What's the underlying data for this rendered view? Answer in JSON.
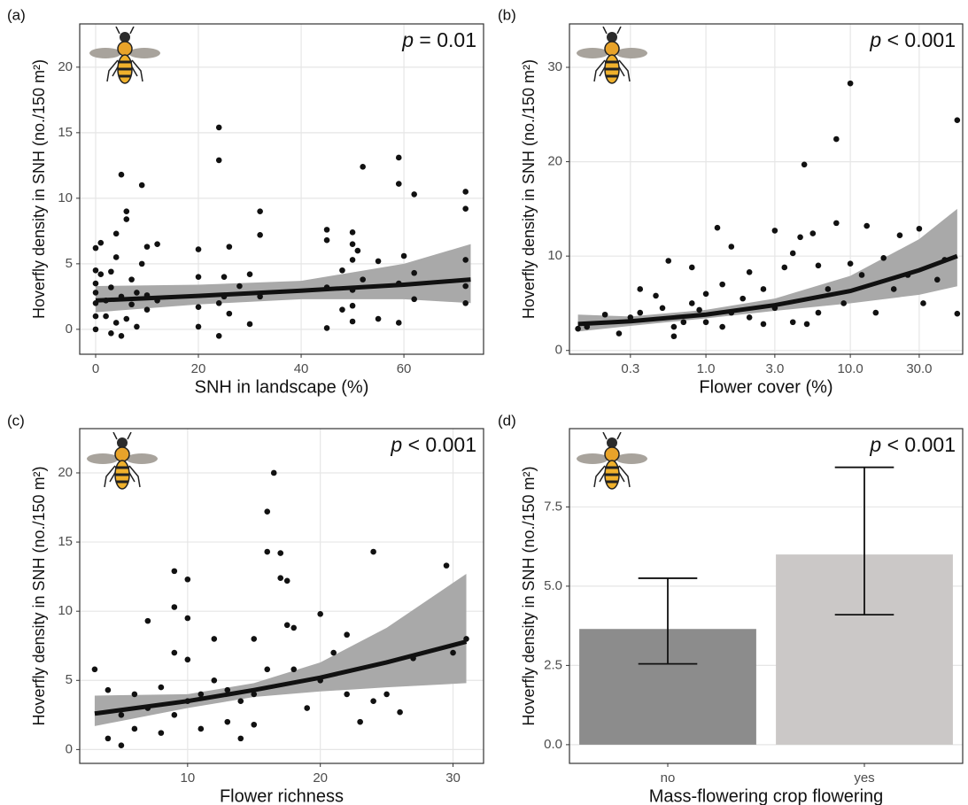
{
  "chart_data": [
    {
      "type": "scatter",
      "panel_label": "(a)",
      "annotation_symbol": "p",
      "annotation": " = 0.01",
      "xlabel": "SNH in landscape (%)",
      "ylabel": "Hoverfly density in SNH (no./150 m²)",
      "xlim": [
        -3.1,
        75.5
      ],
      "xticks": [
        0,
        20,
        40,
        60
      ],
      "ylim": [
        -1.9,
        23.3
      ],
      "yticks": [
        0,
        5,
        10,
        15,
        20
      ],
      "grid": true,
      "log_x": false,
      "color": "#111111",
      "ribbon_color": "#a9a9a9",
      "x": [
        0,
        0,
        0,
        0,
        0,
        0,
        0,
        1,
        1,
        2,
        2,
        3,
        3,
        3,
        4,
        4,
        4,
        5,
        5,
        5,
        6,
        6,
        6,
        7,
        7,
        8,
        8,
        9,
        9,
        10,
        10,
        10,
        12,
        12,
        20,
        20,
        20,
        20,
        24,
        24,
        24,
        24,
        25,
        25,
        26,
        26,
        28,
        30,
        30,
        32,
        32,
        32,
        45,
        45,
        45,
        45,
        48,
        48,
        50,
        50,
        50,
        50,
        50,
        50,
        51,
        52,
        52,
        55,
        55,
        59,
        59,
        59,
        59,
        60,
        62,
        62,
        62,
        72,
        72,
        72,
        72,
        72
      ],
      "values": [
        6.2,
        4.5,
        3.5,
        2.8,
        2,
        1,
        0,
        6.6,
        4.2,
        2.2,
        1,
        4.4,
        3.2,
        -0.3,
        7.3,
        5.5,
        0.5,
        11.8,
        2.5,
        -0.5,
        8.4,
        9,
        0.8,
        3.8,
        1.9,
        2.8,
        0.2,
        11,
        5,
        6.3,
        2.6,
        1.5,
        6.5,
        2.2,
        6.1,
        4,
        1.7,
        0.2,
        15.4,
        12.9,
        2,
        -0.5,
        4,
        2.5,
        6.3,
        1.2,
        3.3,
        4.2,
        0.4,
        9,
        7.2,
        2.5,
        7.6,
        6.8,
        3.2,
        0.1,
        4.5,
        1.5,
        7.4,
        6.5,
        5.3,
        3,
        1.8,
        0.6,
        6,
        12.4,
        3.8,
        5.2,
        0.8,
        13.1,
        11.1,
        3.5,
        0.5,
        5.6,
        10.3,
        4.3,
        2.3,
        10.5,
        9.2,
        5.3,
        3.3,
        2
      ],
      "fit": {
        "x": [
          0,
          20,
          40,
          60,
          73
        ],
        "values": [
          2.2,
          2.55,
          2.95,
          3.4,
          3.8
        ],
        "lower": [
          1.3,
          1.9,
          2.3,
          2.3,
          2.0
        ],
        "upper": [
          3.3,
          3.4,
          3.7,
          5.0,
          6.5
        ]
      }
    },
    {
      "type": "scatter",
      "panel_label": "(b)",
      "annotation_symbol": "p",
      "annotation": " < 0.001",
      "xlabel": "Flower cover (%)",
      "ylabel": "Hoverfly density in SNH (no./150 m²)",
      "xlim": [
        0.1135,
        60
      ],
      "xticks": [
        0.3,
        {
          "value": 1,
          "label": "1.0"
        },
        {
          "value": 3,
          "label": "3.0"
        },
        {
          "value": 10,
          "label": "10.0"
        },
        {
          "value": 30,
          "label": "30.0"
        }
      ],
      "ylim": [
        -0.4,
        34.6
      ],
      "yticks": [
        0,
        10,
        20,
        30
      ],
      "grid": true,
      "log_x": true,
      "color": "#111111",
      "ribbon_color": "#a9a9a9",
      "x": [
        0.13,
        0.15,
        0.2,
        0.25,
        0.3,
        0.35,
        0.35,
        0.45,
        0.5,
        0.55,
        0.6,
        0.6,
        0.7,
        0.8,
        0.8,
        0.9,
        1,
        1,
        1.2,
        1.3,
        1.3,
        1.5,
        1.5,
        1.8,
        2,
        2,
        2.5,
        2.5,
        3,
        3,
        3.5,
        4,
        4,
        4.5,
        4.8,
        5,
        5.5,
        6,
        6,
        7,
        8,
        8,
        9,
        10,
        10,
        12,
        13,
        15,
        17,
        20,
        22,
        25,
        30,
        32,
        40,
        45,
        55,
        55
      ],
      "values": [
        2.3,
        2.5,
        3.8,
        1.8,
        3.5,
        6.5,
        4,
        5.8,
        4.5,
        9.5,
        1.5,
        2.5,
        3,
        8.8,
        5,
        4.3,
        6,
        3,
        13,
        7,
        2.5,
        11,
        4,
        5.5,
        3.5,
        8.3,
        6.5,
        2.8,
        12.7,
        4.5,
        8.8,
        10.3,
        3,
        12,
        19.7,
        2.8,
        12.4,
        9,
        4,
        6.5,
        22.4,
        13.5,
        5,
        28.3,
        9.2,
        8,
        13.2,
        4,
        9.8,
        6.5,
        12.2,
        8,
        12.9,
        5,
        7.5,
        9.6,
        24.4,
        3.9
      ],
      "fit": {
        "x": [
          0.13,
          0.3,
          1,
          3,
          10,
          30,
          55
        ],
        "values": [
          2.8,
          3.1,
          3.8,
          4.8,
          6.3,
          8.5,
          10
        ],
        "lower": [
          2.0,
          2.6,
          3.4,
          4.2,
          5.0,
          5.9,
          6.8
        ],
        "upper": [
          3.8,
          3.6,
          4.3,
          5.5,
          7.9,
          11.8,
          15
        ]
      }
    },
    {
      "type": "scatter",
      "panel_label": "(c)",
      "annotation_symbol": "p",
      "annotation": " < 0.001",
      "xlabel": "Flower richness",
      "ylabel": "Hoverfly density in SNH (no./150 m²)",
      "xlim": [
        1.87,
        32.3
      ],
      "xticks": [
        10,
        20,
        30
      ],
      "ylim": [
        -1.0,
        23.2
      ],
      "yticks": [
        0,
        5,
        10,
        15,
        20
      ],
      "grid": true,
      "log_x": false,
      "color": "#111111",
      "ribbon_color": "#a9a9a9",
      "x": [
        3,
        4,
        4,
        5,
        5,
        6,
        6,
        7,
        7,
        8,
        8,
        9,
        9,
        9,
        9,
        10,
        10,
        10,
        10,
        11,
        11,
        12,
        12,
        13,
        13,
        14,
        14,
        15,
        15,
        15,
        16,
        16,
        16,
        16.5,
        17,
        17,
        17.5,
        17.5,
        18,
        18,
        19,
        20,
        20,
        21,
        22,
        22,
        23,
        24,
        24,
        25,
        26,
        27,
        29.5,
        30,
        31
      ],
      "values": [
        5.8,
        4.3,
        0.8,
        2.5,
        0.3,
        4,
        1.5,
        9.3,
        3,
        4.5,
        1.2,
        12.9,
        10.3,
        7,
        2.5,
        12.3,
        9.5,
        6.5,
        3.5,
        4,
        1.5,
        8,
        5,
        4.3,
        2,
        3.5,
        0.8,
        8,
        4,
        1.8,
        17.2,
        14.3,
        5.8,
        20,
        14.2,
        12.4,
        12.2,
        9,
        8.8,
        5.8,
        3,
        9.8,
        5,
        7,
        8.3,
        4,
        2,
        14.3,
        3.5,
        4,
        2.7,
        6.6,
        13.3,
        7,
        8
      ],
      "fit": {
        "x": [
          3,
          10,
          15,
          20,
          25,
          31
        ],
        "values": [
          2.6,
          3.5,
          4.3,
          5.2,
          6.3,
          7.8
        ],
        "lower": [
          1.7,
          3.0,
          3.8,
          4.2,
          4.5,
          4.8
        ],
        "upper": [
          3.9,
          4.0,
          4.8,
          6.3,
          8.8,
          12.7
        ]
      }
    },
    {
      "type": "bar",
      "panel_label": "(d)",
      "annotation_symbol": "p",
      "annotation": " < 0.001",
      "xlabel": "Mass-flowering crop flowering",
      "ylabel": "Hoverfly density in SNH (no./150 m²)",
      "categories": [
        "no",
        "yes"
      ],
      "values": [
        3.65,
        6.0
      ],
      "error_low": [
        2.55,
        4.1
      ],
      "error_high": [
        5.25,
        8.75
      ],
      "colors": [
        "#8c8c8c",
        "#cbc8c7"
      ],
      "ylim": [
        -0.59,
        9.97
      ],
      "yticks": [
        {
          "value": 0,
          "label": "0.0"
        },
        2.5,
        {
          "value": 5,
          "label": "5.0"
        },
        7.5
      ],
      "grid": true
    }
  ]
}
